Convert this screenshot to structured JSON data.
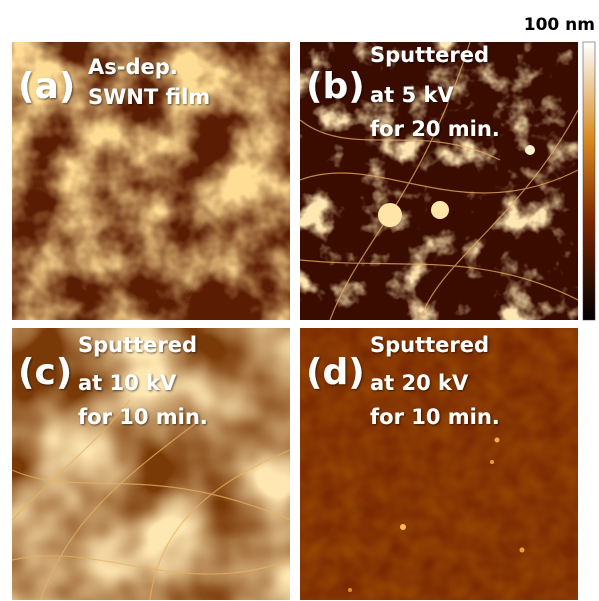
{
  "colorbar": {
    "label": "100 nm"
  },
  "panels": [
    {
      "label": "(a)",
      "caption": [
        "As-dep.",
        "SWNT film"
      ]
    },
    {
      "label": "(b)",
      "caption": [
        "Sputtered",
        "at 5 kV",
        "for 20 min."
      ]
    },
    {
      "label": "(c)",
      "caption": [
        "Sputtered",
        "at 10 kV",
        "for 10 min."
      ]
    },
    {
      "label": "(d)",
      "caption": [
        "Sputtered",
        "at 20 kV",
        "for 10 min."
      ]
    }
  ]
}
